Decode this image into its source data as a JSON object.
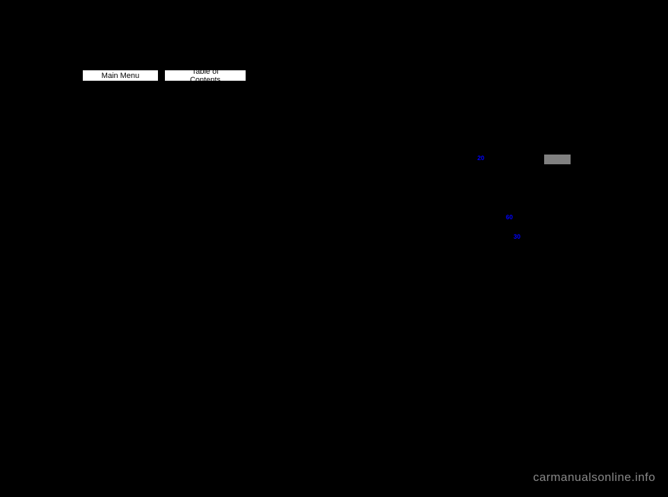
{
  "nav": {
    "main_menu_label": "Main Menu",
    "toc_label": "Table of Contents"
  },
  "links": {
    "marker_1": "20",
    "marker_2": "60",
    "marker_3": "30"
  },
  "watermark": "carmanualsonline.info",
  "colors": {
    "background": "#000000",
    "button_bg": "#ffffff",
    "button_text": "#000000",
    "link_color": "#0000ff",
    "gray_box": "#808080",
    "watermark_color": "#888888"
  }
}
